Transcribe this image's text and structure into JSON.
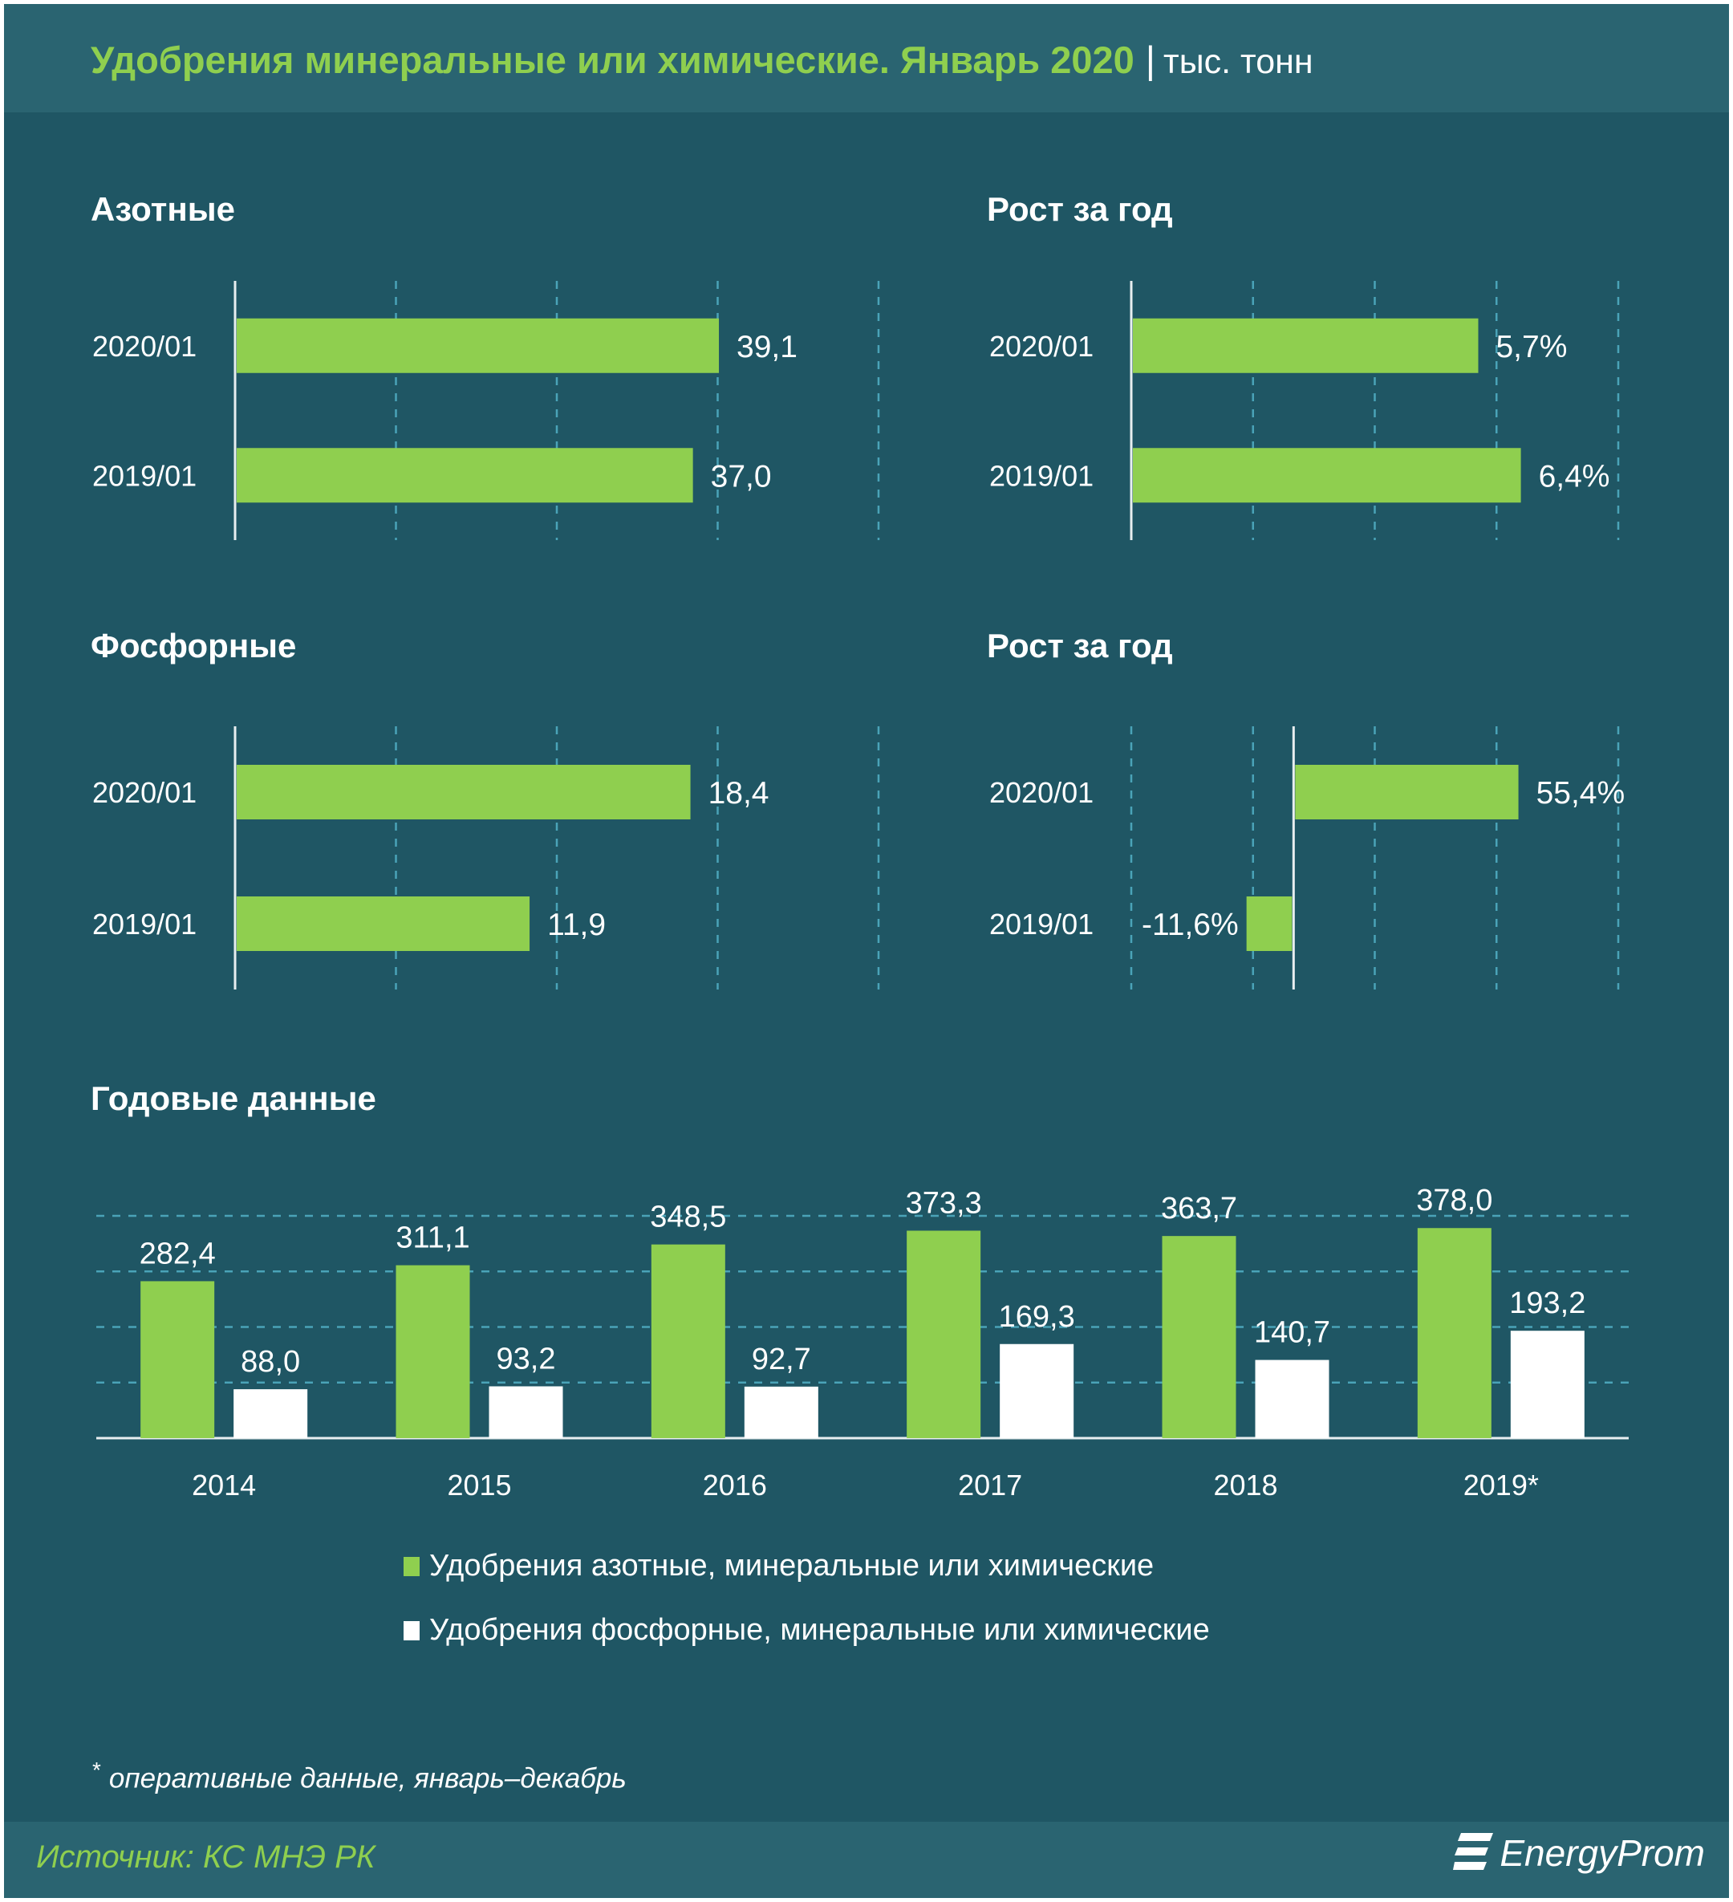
{
  "header": {
    "title": "Удобрения минеральные или химические. Январь 2020",
    "separator": "|",
    "unit": "тыс. тонн"
  },
  "colors": {
    "background": "#1f5664",
    "header_band": "#2a6471",
    "accent_green": "#8fcf4f",
    "bar_white": "#ffffff",
    "grid": "#4aa3b8"
  },
  "chart_data": [
    {
      "type": "bar",
      "orientation": "horizontal",
      "title": "Азотные",
      "categories": [
        "2020/01",
        "2019/01"
      ],
      "values": [
        39.1,
        37.0
      ],
      "labels": [
        "39,1",
        "37,0"
      ],
      "xlim": [
        0,
        52
      ],
      "grid": true
    },
    {
      "type": "bar",
      "orientation": "horizontal",
      "title": "Рост за год",
      "categories": [
        "2020/01",
        "2019/01"
      ],
      "values": [
        5.7,
        6.4
      ],
      "labels": [
        "5,7%",
        "6,4%"
      ],
      "xlim": [
        0,
        8
      ],
      "grid": true
    },
    {
      "type": "bar",
      "orientation": "horizontal",
      "title": "Фосфорные",
      "categories": [
        "2020/01",
        "2019/01"
      ],
      "values": [
        18.4,
        11.9
      ],
      "labels": [
        "18,4",
        "11,9"
      ],
      "xlim": [
        0,
        26
      ],
      "grid": true
    },
    {
      "type": "bar",
      "orientation": "horizontal",
      "title": "Рост за год",
      "categories": [
        "2020/01",
        "2019/01"
      ],
      "values": [
        55.4,
        -11.6
      ],
      "labels": [
        "55,4%",
        "-11,6%"
      ],
      "xlim": [
        -40,
        80
      ],
      "grid": true
    },
    {
      "type": "bar",
      "orientation": "vertical",
      "title": "Годовые данные",
      "categories": [
        "2014",
        "2015",
        "2016",
        "2017",
        "2018",
        "2019*"
      ],
      "series": [
        {
          "name": "Удобрения азотные, минеральные или химические",
          "values": [
            282.4,
            311.1,
            348.5,
            373.3,
            363.7,
            378.0
          ],
          "labels": [
            "282,4",
            "311,1",
            "348,5",
            "373,3",
            "363,7",
            "378,0"
          ],
          "color": "#8fcf4f"
        },
        {
          "name": "Удобрения фосфорные, минеральные или химические",
          "values": [
            88.0,
            93.2,
            92.7,
            169.3,
            140.7,
            193.2
          ],
          "labels": [
            "88,0",
            "93,2",
            "92,7",
            "169,3",
            "140,7",
            "193,2"
          ],
          "color": "#ffffff"
        }
      ],
      "ylim": [
        0,
        400
      ],
      "grid": true,
      "legend": "bottom"
    }
  ],
  "footnote": {
    "star": "*",
    "text": "оперативные данные, январь–декабрь"
  },
  "footer": {
    "source": "Источник: КС МНЭ РК",
    "logo_text": "EnergyProm"
  }
}
